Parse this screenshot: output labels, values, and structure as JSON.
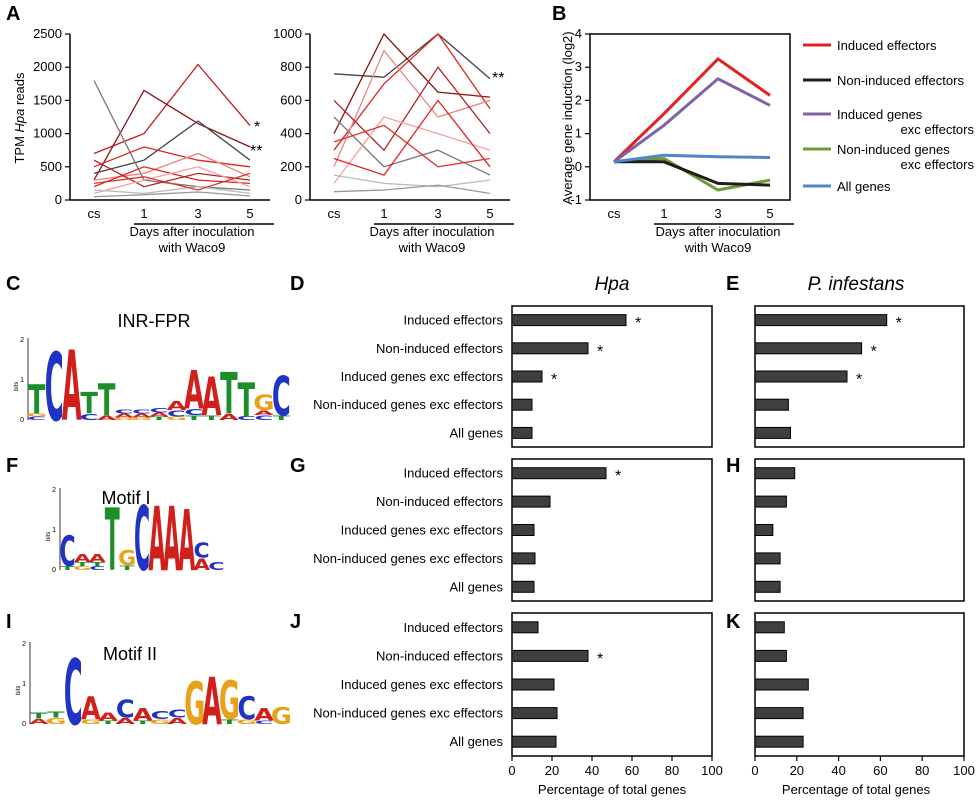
{
  "panels": {
    "A": "A",
    "B": "B",
    "C": "C",
    "D": "D",
    "E": "E",
    "F": "F",
    "G": "G",
    "H": "H",
    "I": "I",
    "J": "J",
    "K": "K"
  },
  "panel_a": {
    "ylabel_pre": "TPM ",
    "ylabel_italic": "Hpa",
    "ylabel_post": " reads",
    "left": {
      "yticks": [
        "0",
        "500",
        "1000",
        "1500",
        "2000",
        "2500"
      ],
      "annotations": [
        "*",
        "**"
      ]
    },
    "right": {
      "yticks": [
        "0",
        "200",
        "400",
        "600",
        "800",
        "1000"
      ],
      "annotations": [
        "**"
      ]
    },
    "xticks": [
      "cs",
      "1",
      "3",
      "5"
    ],
    "xlabel_line1": "Days after inoculation",
    "xlabel_line2": "with Waco9"
  },
  "panel_b": {
    "ylabel": "Average gene induction (log2)",
    "yticks": [
      "-1",
      "0",
      "1",
      "2",
      "3",
      "4"
    ],
    "xticks": [
      "cs",
      "1",
      "3",
      "5"
    ],
    "xlabel_line1": "Days after inoculation",
    "xlabel_line2": "with Waco9",
    "legend": [
      {
        "line1": "Induced effectors",
        "line2": "",
        "color": "#e0231f"
      },
      {
        "line1": "Non-induced effectors",
        "line2": "",
        "color": "#1e1e1e"
      },
      {
        "line1": "Induced genes",
        "line2": "exc effectors",
        "color": "#7f63a6"
      },
      {
        "line1": "Non-induced genes",
        "line2": "exc effectors",
        "color": "#6f9a38"
      },
      {
        "line1": "All genes",
        "line2": "",
        "color": "#4f86c6"
      }
    ]
  },
  "logos": {
    "c_title": "INR-FPR",
    "f_title": "Motif I",
    "i_title": "Motif II",
    "bits_label": "bits",
    "y_top": "2",
    "y_mid": "1",
    "y_bot": "0"
  },
  "bars": {
    "hpa_title": "Hpa",
    "pinf_title": "P. infestans",
    "categories": [
      "Induced effectors",
      "Non-induced effectors",
      "Induced genes exc effectors",
      "Non-induced genes exc effectors",
      "All genes"
    ],
    "xticks": [
      "0",
      "20",
      "40",
      "60",
      "80",
      "100"
    ],
    "xlabel": "Percentage of total genes",
    "star": "*"
  },
  "chart_data": [
    {
      "panel": "A-left",
      "type": "line",
      "x": [
        "cs",
        "1",
        "3",
        "5"
      ],
      "ylabel": "TPM Hpa reads",
      "xlabel": "Days after inoculation with Waco9",
      "ylim": [
        0,
        2500
      ],
      "series": [
        {
          "color": "#c21a1a",
          "values": [
            700,
            1000,
            2040,
            1120
          ]
        },
        {
          "color": "#8b1212",
          "values": [
            300,
            1650,
            1150,
            800
          ]
        },
        {
          "color": "#444444",
          "values": [
            400,
            600,
            1190,
            600
          ]
        },
        {
          "color": "#777777",
          "values": [
            1800,
            300,
            200,
            150
          ]
        },
        {
          "color": "#e0231f",
          "values": [
            500,
            800,
            600,
            500
          ]
        },
        {
          "color": "#f08080",
          "values": [
            300,
            400,
            700,
            350
          ]
        },
        {
          "color": "#e0231f",
          "values": [
            200,
            500,
            300,
            250
          ]
        },
        {
          "color": "#b22222",
          "values": [
            600,
            200,
            400,
            300
          ]
        },
        {
          "color": "#f4a0a0",
          "values": [
            100,
            300,
            500,
            200
          ]
        },
        {
          "color": "#bbbbbb",
          "values": [
            150,
            100,
            200,
            100
          ]
        },
        {
          "color": "#dd3333",
          "values": [
            250,
            350,
            150,
            400
          ]
        },
        {
          "color": "#999999",
          "values": [
            50,
            80,
            120,
            60
          ]
        }
      ]
    },
    {
      "panel": "A-right",
      "type": "line",
      "x": [
        "cs",
        "1",
        "3",
        "5"
      ],
      "ylim": [
        0,
        1000
      ],
      "series": [
        {
          "color": "#444444",
          "values": [
            760,
            740,
            1000,
            730
          ]
        },
        {
          "color": "#8b1212",
          "values": [
            400,
            1000,
            650,
            620
          ]
        },
        {
          "color": "#e0231f",
          "values": [
            300,
            700,
            1000,
            550
          ]
        },
        {
          "color": "#f08080",
          "values": [
            200,
            900,
            500,
            600
          ]
        },
        {
          "color": "#b22222",
          "values": [
            600,
            300,
            800,
            400
          ]
        },
        {
          "color": "#777777",
          "values": [
            500,
            200,
            300,
            150
          ]
        },
        {
          "color": "#f4a0a0",
          "values": [
            100,
            500,
            400,
            300
          ]
        },
        {
          "color": "#dd3333",
          "values": [
            350,
            450,
            200,
            250
          ]
        },
        {
          "color": "#bbbbbb",
          "values": [
            150,
            100,
            80,
            120
          ]
        },
        {
          "color": "#e0231f",
          "values": [
            250,
            150,
            600,
            200
          ]
        },
        {
          "color": "#999999",
          "values": [
            50,
            60,
            90,
            40
          ]
        }
      ]
    },
    {
      "panel": "B",
      "type": "line",
      "x": [
        "cs",
        "1",
        "3",
        "5"
      ],
      "ylabel": "Average gene induction (log2)",
      "xlabel": "Days after inoculation with Waco9",
      "ylim": [
        -1,
        4
      ],
      "series": [
        {
          "name": "Induced effectors",
          "color": "#e0231f",
          "values": [
            0.15,
            1.6,
            3.25,
            2.15
          ]
        },
        {
          "name": "Induced genes exc effectors",
          "color": "#7f63a6",
          "values": [
            0.15,
            1.25,
            2.65,
            1.85
          ]
        },
        {
          "name": "Non-induced genes exc effectors",
          "color": "#6f9a38",
          "values": [
            0.15,
            0.25,
            -0.7,
            -0.4
          ]
        },
        {
          "name": "Non-induced effectors",
          "color": "#1e1e1e",
          "values": [
            0.15,
            0.15,
            -0.5,
            -0.55
          ]
        },
        {
          "name": "All genes",
          "color": "#4f86c6",
          "values": [
            0.15,
            0.35,
            0.3,
            0.28
          ]
        }
      ]
    },
    {
      "panel": "D",
      "type": "bar",
      "title": "Hpa",
      "categories": [
        "Induced effectors",
        "Non-induced effectors",
        "Induced genes exc effectors",
        "Non-induced genes exc effectors",
        "All genes"
      ],
      "values": [
        57,
        38,
        15,
        10,
        10
      ],
      "significant": [
        true,
        true,
        true,
        false,
        false
      ],
      "xlim": [
        0,
        100
      ]
    },
    {
      "panel": "E",
      "type": "bar",
      "title": "P. infestans",
      "categories": [
        "Induced effectors",
        "Non-induced effectors",
        "Induced genes exc effectors",
        "Non-induced genes exc effectors",
        "All genes"
      ],
      "values": [
        63,
        51,
        44,
        16,
        17
      ],
      "significant": [
        true,
        true,
        true,
        false,
        false
      ],
      "xlim": [
        0,
        100
      ]
    },
    {
      "panel": "G",
      "type": "bar",
      "categories": [
        "Induced effectors",
        "Non-induced effectors",
        "Induced genes exc effectors",
        "Non-induced genes exc effectors",
        "All genes"
      ],
      "values": [
        47,
        19,
        11,
        11.5,
        11
      ],
      "significant": [
        true,
        false,
        false,
        false,
        false
      ],
      "xlim": [
        0,
        100
      ]
    },
    {
      "panel": "H",
      "type": "bar",
      "categories": [
        "Induced effectors",
        "Non-induced effectors",
        "Induced genes exc effectors",
        "Non-induced genes exc effectors",
        "All genes"
      ],
      "values": [
        19,
        15,
        8.5,
        12,
        12
      ],
      "significant": [
        false,
        false,
        false,
        false,
        false
      ],
      "xlim": [
        0,
        100
      ]
    },
    {
      "panel": "J",
      "type": "bar",
      "categories": [
        "Induced effectors",
        "Non-induced effectors",
        "Induced genes exc effectors",
        "Non-induced genes exc effectors",
        "All genes"
      ],
      "values": [
        13,
        38,
        21,
        22.5,
        22
      ],
      "significant": [
        false,
        true,
        false,
        false,
        false
      ],
      "xlim": [
        0,
        100
      ],
      "xlabel": "Percentage of total genes"
    },
    {
      "panel": "K",
      "type": "bar",
      "categories": [
        "Induced effectors",
        "Non-induced effectors",
        "Induced genes exc effectors",
        "Non-induced genes exc effectors",
        "All genes"
      ],
      "values": [
        14,
        15,
        25.5,
        23,
        23
      ],
      "significant": [
        false,
        false,
        false,
        false,
        false
      ],
      "xlim": [
        0,
        100
      ],
      "xlabel": "Percentage of total genes"
    }
  ]
}
